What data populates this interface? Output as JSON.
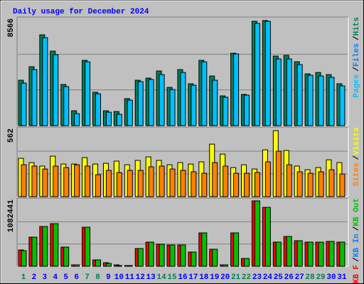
{
  "chart_data": {
    "type": "bar",
    "title": "Daily usage for December 2024",
    "categories": [
      "1",
      "2",
      "3",
      "4",
      "5",
      "6",
      "7",
      "8",
      "9",
      "10",
      "11",
      "12",
      "13",
      "14",
      "15",
      "16",
      "17",
      "18",
      "19",
      "20",
      "21",
      "22",
      "23",
      "24",
      "25",
      "26",
      "27",
      "28",
      "29",
      "30",
      "31"
    ],
    "category_colors": [
      "#00805c",
      "#0000ff",
      "#0000ff",
      "#0000ff",
      "#0000ff",
      "#0000ff",
      "#00805c",
      "#00805c",
      "#0000ff",
      "#0000ff",
      "#0000ff",
      "#0000ff",
      "#0000ff",
      "#00805c",
      "#00805c",
      "#0000ff",
      "#0000ff",
      "#0000ff",
      "#0000ff",
      "#0000ff",
      "#00805c",
      "#00805c",
      "#0000ff",
      "#0000ff",
      "#0000ff",
      "#0000ff",
      "#0000ff",
      "#00805c",
      "#00805c",
      "#0000ff",
      "#0000ff"
    ],
    "separator": "/",
    "panels": [
      {
        "ylim": [
          0,
          8566
        ],
        "yticks": [
          8566
        ],
        "legend": [
          {
            "text": "Pages",
            "color": "#00c0ff"
          },
          {
            "text": "Files",
            "color": "#0080ff"
          },
          {
            "text": "Hits",
            "color": "#00805c"
          }
        ],
        "series": [
          {
            "color": "#00805c",
            "values": [
              3630,
              4710,
              7260,
              5960,
              3290,
              1190,
              5220,
              2670,
              1190,
              1130,
              2160,
              3630,
              3800,
              4370,
              3060,
              4480,
              3350,
              5220,
              3970,
              2380,
              5790,
              2500,
              8340,
              8400,
              5560,
              5620,
              5110,
              4140,
              4250,
              4080,
              3350
            ]
          },
          {
            "color": "#00c0ff",
            "values": [
              3400,
              4480,
              7030,
              5670,
              3120,
              960,
              5100,
              2550,
              1080,
              910,
              2040,
              3520,
              3690,
              4080,
              2890,
              4250,
              3230,
              5100,
              3630,
              2270,
              5730,
              2440,
              8170,
              8340,
              5330,
              5330,
              4880,
              4030,
              3970,
              3860,
              3180
            ]
          }
        ]
      },
      {
        "ylim": [
          0,
          562
        ],
        "yticks": [
          562
        ],
        "legend": [
          {
            "text": "Sites",
            "color": "#ff8000"
          },
          {
            "text": "Visits",
            "color": "#ffff00"
          }
        ],
        "series": [
          {
            "color": "#ffff00",
            "values": [
              316,
              281,
              252,
              334,
              269,
              269,
              322,
              269,
              275,
              293,
              263,
              299,
              328,
              299,
              263,
              281,
              269,
              287,
              433,
              351,
              240,
              263,
              228,
              386,
              544,
              381,
              252,
              222,
              240,
              304,
              281
            ]
          },
          {
            "color": "#ff8000",
            "values": [
              263,
              252,
              228,
              252,
              240,
              263,
              252,
              181,
              217,
              199,
              217,
              217,
              246,
              252,
              228,
              217,
              205,
              193,
              281,
              252,
              193,
              193,
              199,
              287,
              375,
              263,
              205,
              193,
              205,
              222,
              187
            ]
          }
        ]
      },
      {
        "ylim": [
          0,
          1082441
        ],
        "yticks": [
          1082441
        ],
        "legend": [
          {
            "text": "KB F",
            "color": "#ff0000"
          },
          {
            "text": "KB In",
            "color": "#0080ff"
          },
          {
            "text": "KB Out",
            "color": "#00c000"
          }
        ],
        "series": [
          {
            "color": "#ff0000",
            "values": [
              264800,
              472100,
              644800,
              690900,
              310900,
              23000,
              633300,
              103600,
              57600,
              23000,
              11500,
              287900,
              391500,
              357000,
              345500,
              345500,
              230300,
              541200,
              276400,
              23000,
              541200,
              126700,
              1060000,
              955800,
              391500,
              483600,
              414500,
              391500,
              391500,
              403000,
              391500
            ]
          },
          {
            "color": "#00c000",
            "values": [
              253300,
              472100,
              644800,
              690900,
              310900,
              23000,
              633300,
              103600,
              46000,
              11500,
              11500,
              287900,
              391500,
              357000,
              345500,
              345500,
              230300,
              541200,
              276400,
              23000,
              541200,
              126700,
              1060000,
              955800,
              391500,
              483600,
              414500,
              391500,
              391500,
              403000,
              391500
            ]
          }
        ]
      }
    ]
  }
}
